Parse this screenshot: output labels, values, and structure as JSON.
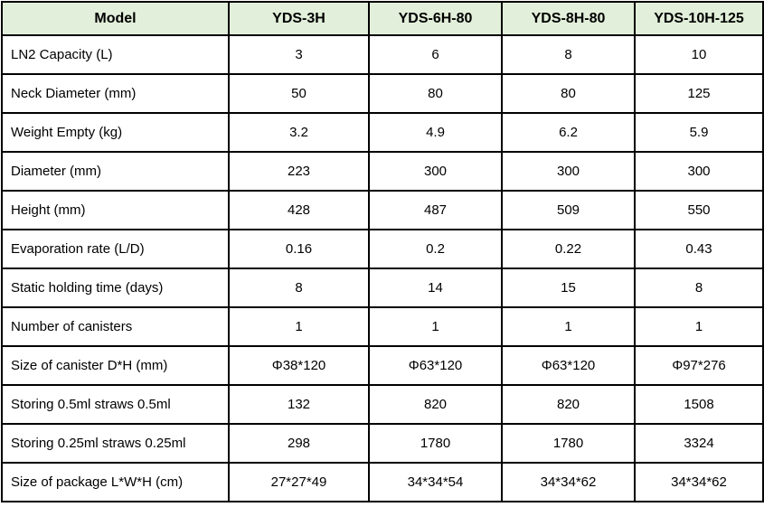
{
  "table": {
    "title": "Model",
    "header": [
      "Model",
      "YDS-3H",
      "YDS-6H-80",
      "YDS-8H-80",
      "YDS-10H-125"
    ],
    "rows": [
      {
        "label": "LN2 Capacity (L)",
        "values": [
          "3",
          "6",
          "8",
          "10"
        ]
      },
      {
        "label": "Neck Diameter (mm)",
        "values": [
          "50",
          "80",
          "80",
          "125"
        ]
      },
      {
        "label": "Weight Empty (kg)",
        "values": [
          "3.2",
          "4.9",
          "6.2",
          "5.9"
        ]
      },
      {
        "label": "Diameter (mm)",
        "values": [
          "223",
          "300",
          "300",
          "300"
        ]
      },
      {
        "label": "Height (mm)",
        "values": [
          "428",
          "487",
          "509",
          "550"
        ]
      },
      {
        "label": "Evaporation rate (L/D)",
        "values": [
          "0.16",
          "0.2",
          "0.22",
          "0.43"
        ]
      },
      {
        "label": "Static holding time (days)",
        "values": [
          "8",
          "14",
          "15",
          "8"
        ]
      },
      {
        "label": "Number of canisters",
        "values": [
          "1",
          "1",
          "1",
          "1"
        ]
      },
      {
        "label": "Size of canister D*H (mm)",
        "values": [
          "Φ38*120",
          "Φ63*120",
          "Φ63*120",
          "Φ97*276"
        ]
      },
      {
        "label": "Storing 0.5ml straws 0.5ml",
        "values": [
          "132",
          "820",
          "820",
          "1508"
        ]
      },
      {
        "label": "Storing 0.25ml straws 0.25ml",
        "values": [
          "298",
          "1780",
          "1780",
          "3324"
        ]
      },
      {
        "label": "Size of package L*W*H (cm)",
        "values": [
          "27*27*49",
          "34*34*54",
          "34*34*62",
          "34*34*62"
        ]
      }
    ],
    "colors": {
      "header_bg": "#e2efda",
      "border": "#000000",
      "text": "#000000",
      "background": "#ffffff"
    }
  }
}
